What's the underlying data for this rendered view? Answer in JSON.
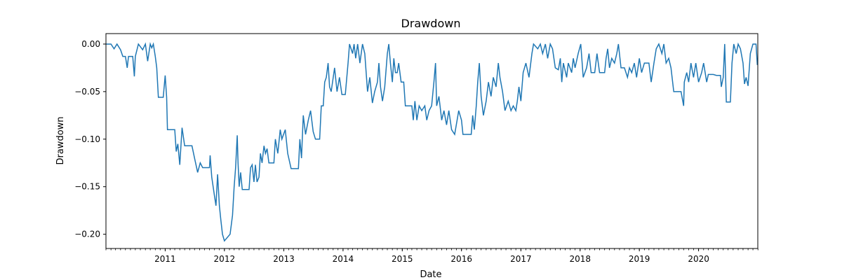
{
  "chart_data": {
    "type": "line",
    "title": "Drawdown",
    "xlabel": "Date",
    "ylabel": "Drawdown",
    "ylim": [
      -0.215,
      0.011
    ],
    "yticks": [
      0.0,
      -0.05,
      -0.1,
      -0.15,
      -0.2
    ],
    "ytick_labels": [
      "0.00",
      "−0.05",
      "−0.10",
      "−0.15",
      "−0.20"
    ],
    "xlim": [
      "2010-01-01",
      "2020-12-31"
    ],
    "xticks": [
      "2011-01-01",
      "2012-01-01",
      "2013-01-01",
      "2014-01-01",
      "2015-01-01",
      "2016-01-01",
      "2017-01-01",
      "2018-01-01",
      "2019-01-01",
      "2020-01-01"
    ],
    "xtick_labels": [
      "2011",
      "2012",
      "2013",
      "2014",
      "2015",
      "2016",
      "2017",
      "2018",
      "2019",
      "2020"
    ],
    "minor_ticks": "monthly",
    "grid": false,
    "line_color": "#1f77b4",
    "series": [
      {
        "values": [
          [
            "2010-01-01",
            0.0
          ],
          [
            "2010-02-01",
            0.0
          ],
          [
            "2010-02-20",
            -0.005
          ],
          [
            "2010-03-10",
            0.0
          ],
          [
            "2010-04-01",
            -0.006
          ],
          [
            "2010-04-15",
            -0.013
          ],
          [
            "2010-05-01",
            -0.013
          ],
          [
            "2010-05-12",
            -0.025
          ],
          [
            "2010-05-20",
            -0.013
          ],
          [
            "2010-06-15",
            -0.013
          ],
          [
            "2010-06-25",
            -0.034
          ],
          [
            "2010-07-01",
            -0.013
          ],
          [
            "2010-07-20",
            0.0
          ],
          [
            "2010-08-15",
            -0.006
          ],
          [
            "2010-09-01",
            0.0
          ],
          [
            "2010-09-15",
            -0.018
          ],
          [
            "2010-10-01",
            0.0
          ],
          [
            "2010-10-10",
            -0.004
          ],
          [
            "2010-10-20",
            0.0
          ],
          [
            "2010-11-01",
            -0.013
          ],
          [
            "2010-11-10",
            -0.025
          ],
          [
            "2010-11-20",
            -0.056
          ],
          [
            "2010-12-20",
            -0.056
          ],
          [
            "2011-01-01",
            -0.033
          ],
          [
            "2011-01-10",
            -0.056
          ],
          [
            "2011-01-15",
            -0.09
          ],
          [
            "2011-03-01",
            -0.09
          ],
          [
            "2011-03-10",
            -0.113
          ],
          [
            "2011-03-20",
            -0.105
          ],
          [
            "2011-04-01",
            -0.127
          ],
          [
            "2011-04-15",
            -0.088
          ],
          [
            "2011-05-01",
            -0.107
          ],
          [
            "2011-06-15",
            -0.107
          ],
          [
            "2011-07-01",
            -0.12
          ],
          [
            "2011-07-20",
            -0.135
          ],
          [
            "2011-08-05",
            -0.125
          ],
          [
            "2011-08-20",
            -0.13
          ],
          [
            "2011-10-01",
            -0.13
          ],
          [
            "2011-10-05",
            -0.117
          ],
          [
            "2011-10-15",
            -0.14
          ],
          [
            "2011-11-01",
            -0.16
          ],
          [
            "2011-11-10",
            -0.17
          ],
          [
            "2011-11-20",
            -0.137
          ],
          [
            "2011-12-01",
            -0.17
          ],
          [
            "2011-12-10",
            -0.185
          ],
          [
            "2011-12-20",
            -0.2
          ],
          [
            "2012-01-01",
            -0.207
          ],
          [
            "2012-02-05",
            -0.2
          ],
          [
            "2012-02-20",
            -0.18
          ],
          [
            "2012-03-01",
            -0.15
          ],
          [
            "2012-03-10",
            -0.13
          ],
          [
            "2012-03-20",
            -0.096
          ],
          [
            "2012-03-25",
            -0.125
          ],
          [
            "2012-04-01",
            -0.15
          ],
          [
            "2012-04-10",
            -0.135
          ],
          [
            "2012-04-20",
            -0.153
          ],
          [
            "2012-06-01",
            -0.153
          ],
          [
            "2012-06-10",
            -0.13
          ],
          [
            "2012-06-20",
            -0.127
          ],
          [
            "2012-07-01",
            -0.145
          ],
          [
            "2012-07-10",
            -0.127
          ],
          [
            "2012-07-20",
            -0.145
          ],
          [
            "2012-08-01",
            -0.14
          ],
          [
            "2012-08-10",
            -0.115
          ],
          [
            "2012-08-20",
            -0.125
          ],
          [
            "2012-09-01",
            -0.107
          ],
          [
            "2012-09-10",
            -0.115
          ],
          [
            "2012-09-20",
            -0.11
          ],
          [
            "2012-10-01",
            -0.125
          ],
          [
            "2012-11-01",
            -0.125
          ],
          [
            "2012-11-10",
            -0.1
          ],
          [
            "2012-11-25",
            -0.115
          ],
          [
            "2012-12-10",
            -0.09
          ],
          [
            "2012-12-20",
            -0.1
          ],
          [
            "2013-01-10",
            -0.09
          ],
          [
            "2013-01-25",
            -0.115
          ],
          [
            "2013-02-15",
            -0.131
          ],
          [
            "2013-04-01",
            -0.131
          ],
          [
            "2013-04-10",
            -0.1
          ],
          [
            "2013-04-20",
            -0.12
          ],
          [
            "2013-05-01",
            -0.075
          ],
          [
            "2013-05-15",
            -0.095
          ],
          [
            "2013-06-01",
            -0.08
          ],
          [
            "2013-06-15",
            -0.07
          ],
          [
            "2013-07-01",
            -0.092
          ],
          [
            "2013-07-15",
            -0.1
          ],
          [
            "2013-08-10",
            -0.1
          ],
          [
            "2013-08-20",
            -0.065
          ],
          [
            "2013-09-01",
            -0.065
          ],
          [
            "2013-09-10",
            -0.04
          ],
          [
            "2013-09-20",
            -0.035
          ],
          [
            "2013-10-01",
            -0.02
          ],
          [
            "2013-10-10",
            -0.045
          ],
          [
            "2013-10-20",
            -0.05
          ],
          [
            "2013-11-10",
            -0.025
          ],
          [
            "2013-11-25",
            -0.05
          ],
          [
            "2013-12-10",
            -0.035
          ],
          [
            "2013-12-25",
            -0.053
          ],
          [
            "2014-01-15",
            -0.053
          ],
          [
            "2014-02-01",
            -0.02
          ],
          [
            "2014-02-10",
            0.0
          ],
          [
            "2014-03-01",
            -0.01
          ],
          [
            "2014-03-10",
            0.0
          ],
          [
            "2014-03-20",
            -0.015
          ],
          [
            "2014-04-01",
            0.0
          ],
          [
            "2014-04-15",
            -0.02
          ],
          [
            "2014-05-01",
            0.0
          ],
          [
            "2014-05-15",
            -0.01
          ],
          [
            "2014-06-01",
            -0.05
          ],
          [
            "2014-06-15",
            -0.035
          ],
          [
            "2014-07-01",
            -0.062
          ],
          [
            "2014-07-15",
            -0.05
          ],
          [
            "2014-08-01",
            -0.04
          ],
          [
            "2014-08-10",
            -0.02
          ],
          [
            "2014-08-20",
            -0.045
          ],
          [
            "2014-09-01",
            -0.06
          ],
          [
            "2014-09-15",
            -0.045
          ],
          [
            "2014-10-01",
            -0.01
          ],
          [
            "2014-10-10",
            0.0
          ],
          [
            "2014-10-20",
            -0.02
          ],
          [
            "2014-11-01",
            -0.04
          ],
          [
            "2014-11-10",
            -0.015
          ],
          [
            "2014-11-20",
            -0.03
          ],
          [
            "2014-12-01",
            -0.03
          ],
          [
            "2014-12-10",
            -0.02
          ],
          [
            "2014-12-25",
            -0.04
          ],
          [
            "2015-01-10",
            -0.04
          ],
          [
            "2015-01-20",
            -0.065
          ],
          [
            "2015-03-01",
            -0.065
          ],
          [
            "2015-03-10",
            -0.08
          ],
          [
            "2015-03-20",
            -0.06
          ],
          [
            "2015-04-01",
            -0.08
          ],
          [
            "2015-04-15",
            -0.065
          ],
          [
            "2015-05-01",
            -0.07
          ],
          [
            "2015-05-20",
            -0.065
          ],
          [
            "2015-06-01",
            -0.08
          ],
          [
            "2015-06-15",
            -0.07
          ],
          [
            "2015-07-01",
            -0.065
          ],
          [
            "2015-07-15",
            -0.04
          ],
          [
            "2015-07-25",
            -0.02
          ],
          [
            "2015-08-01",
            -0.065
          ],
          [
            "2015-08-15",
            -0.055
          ],
          [
            "2015-09-01",
            -0.08
          ],
          [
            "2015-09-15",
            -0.07
          ],
          [
            "2015-10-01",
            -0.085
          ],
          [
            "2015-10-15",
            -0.07
          ],
          [
            "2015-11-01",
            -0.09
          ],
          [
            "2015-11-20",
            -0.095
          ],
          [
            "2015-12-05",
            -0.08
          ],
          [
            "2015-12-15",
            -0.07
          ],
          [
            "2016-01-01",
            -0.08
          ],
          [
            "2016-01-10",
            -0.095
          ],
          [
            "2016-03-01",
            -0.095
          ],
          [
            "2016-03-10",
            -0.075
          ],
          [
            "2016-03-20",
            -0.09
          ],
          [
            "2016-04-01",
            -0.065
          ],
          [
            "2016-04-10",
            -0.04
          ],
          [
            "2016-04-20",
            -0.02
          ],
          [
            "2016-05-01",
            -0.055
          ],
          [
            "2016-05-15",
            -0.075
          ],
          [
            "2016-06-01",
            -0.06
          ],
          [
            "2016-06-15",
            -0.04
          ],
          [
            "2016-07-01",
            -0.055
          ],
          [
            "2016-07-15",
            -0.035
          ],
          [
            "2016-08-01",
            -0.045
          ],
          [
            "2016-08-15",
            -0.02
          ],
          [
            "2016-08-25",
            -0.035
          ],
          [
            "2016-09-10",
            -0.05
          ],
          [
            "2016-09-25",
            -0.07
          ],
          [
            "2016-10-15",
            -0.06
          ],
          [
            "2016-11-01",
            -0.07
          ],
          [
            "2016-11-15",
            -0.065
          ],
          [
            "2016-12-01",
            -0.07
          ],
          [
            "2016-12-10",
            -0.06
          ],
          [
            "2016-12-20",
            -0.045
          ],
          [
            "2017-01-01",
            -0.06
          ],
          [
            "2017-01-15",
            -0.03
          ],
          [
            "2017-02-01",
            -0.02
          ],
          [
            "2017-02-20",
            -0.035
          ],
          [
            "2017-03-10",
            -0.01
          ],
          [
            "2017-03-20",
            0.0
          ],
          [
            "2017-04-15",
            -0.005
          ],
          [
            "2017-05-01",
            0.0
          ],
          [
            "2017-05-15",
            -0.01
          ],
          [
            "2017-06-01",
            0.0
          ],
          [
            "2017-06-15",
            -0.015
          ],
          [
            "2017-07-01",
            0.0
          ],
          [
            "2017-07-15",
            -0.005
          ],
          [
            "2017-08-01",
            -0.025
          ],
          [
            "2017-08-20",
            -0.027
          ],
          [
            "2017-09-01",
            -0.015
          ],
          [
            "2017-09-10",
            -0.04
          ],
          [
            "2017-09-20",
            -0.02
          ],
          [
            "2017-10-10",
            -0.035
          ],
          [
            "2017-10-20",
            -0.02
          ],
          [
            "2017-11-10",
            -0.03
          ],
          [
            "2017-11-20",
            -0.015
          ],
          [
            "2017-12-01",
            -0.025
          ],
          [
            "2017-12-20",
            -0.01
          ],
          [
            "2018-01-05",
            0.0
          ],
          [
            "2018-01-20",
            -0.035
          ],
          [
            "2018-02-10",
            -0.025
          ],
          [
            "2018-02-25",
            -0.01
          ],
          [
            "2018-03-10",
            -0.03
          ],
          [
            "2018-04-01",
            -0.03
          ],
          [
            "2018-04-15",
            -0.01
          ],
          [
            "2018-05-01",
            -0.03
          ],
          [
            "2018-06-01",
            -0.03
          ],
          [
            "2018-06-10",
            -0.015
          ],
          [
            "2018-06-20",
            -0.005
          ],
          [
            "2018-07-01",
            -0.025
          ],
          [
            "2018-07-15",
            -0.015
          ],
          [
            "2018-08-01",
            -0.02
          ],
          [
            "2018-08-15",
            -0.01
          ],
          [
            "2018-08-25",
            0.0
          ],
          [
            "2018-09-10",
            -0.025
          ],
          [
            "2018-10-01",
            -0.025
          ],
          [
            "2018-10-20",
            -0.035
          ],
          [
            "2018-11-01",
            -0.025
          ],
          [
            "2018-11-15",
            -0.03
          ],
          [
            "2018-12-01",
            -0.02
          ],
          [
            "2018-12-15",
            -0.035
          ],
          [
            "2019-01-01",
            -0.015
          ],
          [
            "2019-01-15",
            -0.03
          ],
          [
            "2019-02-01",
            -0.02
          ],
          [
            "2019-03-01",
            -0.02
          ],
          [
            "2019-03-15",
            -0.04
          ],
          [
            "2019-04-01",
            -0.02
          ],
          [
            "2019-04-15",
            -0.005
          ],
          [
            "2019-05-01",
            0.0
          ],
          [
            "2019-05-20",
            -0.01
          ],
          [
            "2019-06-01",
            0.0
          ],
          [
            "2019-06-15",
            -0.02
          ],
          [
            "2019-07-01",
            -0.015
          ],
          [
            "2019-07-15",
            -0.025
          ],
          [
            "2019-08-01",
            -0.05
          ],
          [
            "2019-09-15",
            -0.05
          ],
          [
            "2019-10-01",
            -0.065
          ],
          [
            "2019-10-05",
            -0.04
          ],
          [
            "2019-10-20",
            -0.03
          ],
          [
            "2019-11-01",
            -0.04
          ],
          [
            "2019-11-15",
            -0.02
          ],
          [
            "2019-12-01",
            -0.035
          ],
          [
            "2019-12-15",
            -0.02
          ],
          [
            "2020-01-01",
            -0.04
          ],
          [
            "2020-01-20",
            -0.03
          ],
          [
            "2020-02-01",
            -0.02
          ],
          [
            "2020-02-20",
            -0.04
          ],
          [
            "2020-03-01",
            -0.032
          ],
          [
            "2020-04-01",
            -0.032
          ],
          [
            "2020-04-20",
            -0.033
          ],
          [
            "2020-05-15",
            -0.033
          ],
          [
            "2020-05-20",
            -0.045
          ],
          [
            "2020-06-01",
            -0.035
          ],
          [
            "2020-06-10",
            0.0
          ],
          [
            "2020-06-20",
            -0.061
          ],
          [
            "2020-07-15",
            -0.061
          ],
          [
            "2020-07-25",
            -0.02
          ],
          [
            "2020-08-05",
            0.0
          ],
          [
            "2020-08-20",
            -0.01
          ],
          [
            "2020-09-01",
            0.0
          ],
          [
            "2020-09-15",
            -0.005
          ],
          [
            "2020-10-01",
            -0.02
          ],
          [
            "2020-10-10",
            -0.042
          ],
          [
            "2020-10-20",
            -0.035
          ],
          [
            "2020-11-01",
            -0.044
          ],
          [
            "2020-11-15",
            -0.01
          ],
          [
            "2020-12-01",
            0.0
          ],
          [
            "2020-12-20",
            0.0
          ],
          [
            "2020-12-28",
            -0.022
          ]
        ]
      }
    ]
  }
}
